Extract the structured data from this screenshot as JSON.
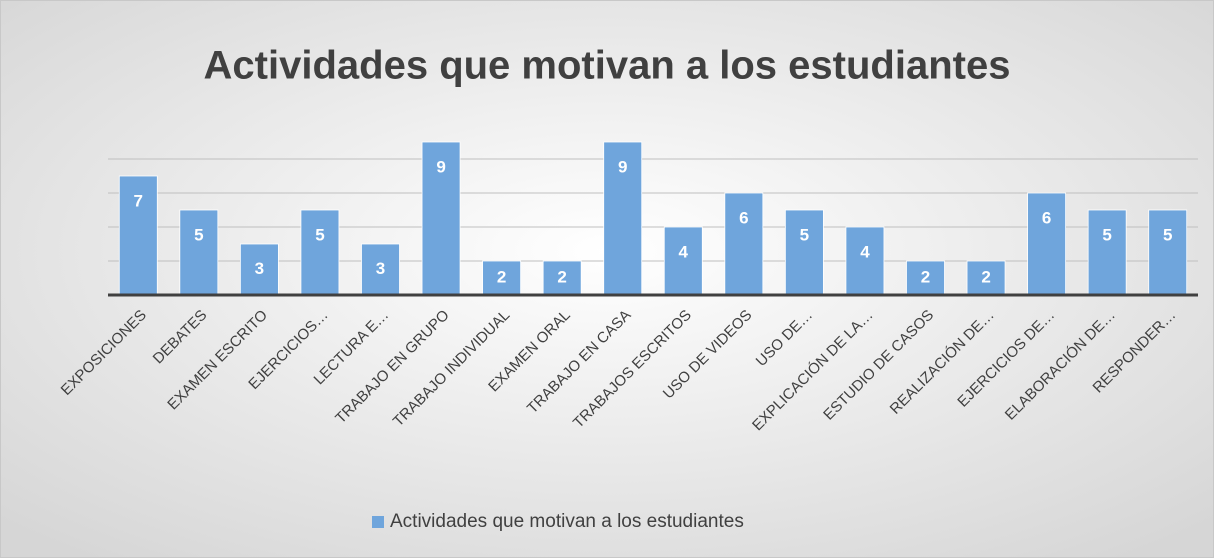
{
  "chart_data": {
    "type": "bar",
    "title": "Actividades que motivan a los estudiantes",
    "categories": [
      "EXPOSICIONES",
      "DEBATES",
      "EXAMEN ESCRITO",
      "EJERCICIOS…",
      "LECTURA E…",
      "TRABAJO EN GRUPO",
      "TRABAJO INDIVIDUAL",
      "EXAMEN ORAL",
      "TRABAJO EN CASA",
      "TRABAJOS ESCRITOS",
      "USO DE VIDEOS",
      "USO DE…",
      "EXPLICACIÓN DE LA…",
      "ESTUDIO DE CASOS",
      "REALIZACIÓN DE…",
      "EJERCICIOS DE…",
      "ELABORACIÓN DE…",
      "RESPONDER…"
    ],
    "series": [
      {
        "name": "Actividades que motivan a los estudiantes",
        "color": "#6fa5dc",
        "values": [
          7,
          5,
          3,
          5,
          3,
          9,
          2,
          2,
          9,
          4,
          6,
          5,
          4,
          2,
          2,
          6,
          5,
          5
        ]
      }
    ],
    "ylim": [
      0,
      10
    ],
    "yticks": [
      0,
      2,
      4,
      6,
      8
    ],
    "grid": true,
    "legend": "bottom"
  }
}
